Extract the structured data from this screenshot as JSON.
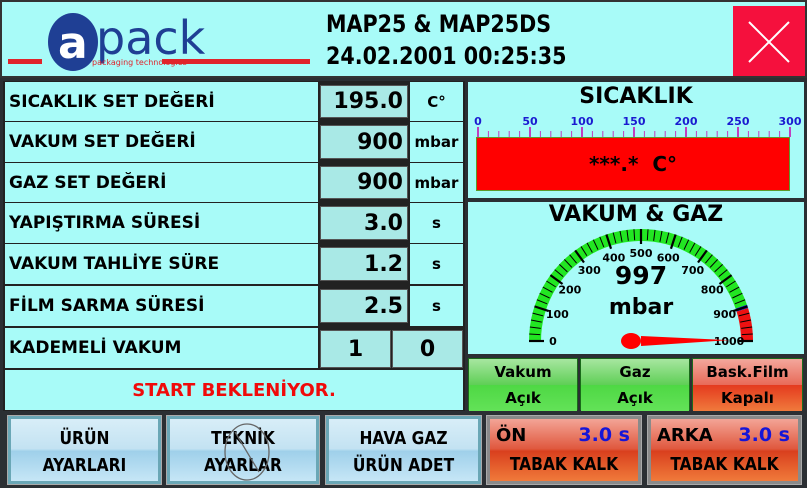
{
  "header": {
    "logo_text": "apack",
    "logo_subtext": "packaging technologies",
    "title": "MAP25 & MAP25DS",
    "datetime": "24.02.2001 00:25:35",
    "close_icon": "close-x-icon"
  },
  "settings": [
    {
      "label": "SICAKLIK SET DEĞERİ",
      "value": "195.0",
      "unit": "C°"
    },
    {
      "label": "VAKUM SET DEĞERİ",
      "value": "900",
      "unit": "mbar"
    },
    {
      "label": "GAZ SET DEĞERİ",
      "value": "900",
      "unit": "mbar"
    },
    {
      "label": "YAPIŞTIRMA SÜRESİ",
      "value": "3.0",
      "unit": "s"
    },
    {
      "label": "VAKUM TAHLİYE SÜRE",
      "value": "1.2",
      "unit": "s"
    },
    {
      "label": "FİLM SARMA SÜRESİ",
      "value": "2.5",
      "unit": "s"
    }
  ],
  "kademeli": {
    "label": "KADEMELİ VAKUM",
    "value1": "1",
    "value2": "0"
  },
  "status": "START BEKLENİYOR.",
  "temperature": {
    "title": "SICAKLIK",
    "ticks": [
      "0",
      "50",
      "100",
      "150",
      "200",
      "250",
      "300"
    ],
    "min": 0,
    "max": 300,
    "display": "***.*  C°",
    "bar_color": "#ff0000"
  },
  "vacuum": {
    "title": "VAKUM & GAZ",
    "value": 997,
    "value_text": "997",
    "unit": "mbar",
    "min": 0,
    "max": 1000,
    "ticks": [
      "0",
      "100",
      "200",
      "300",
      "400",
      "500",
      "600",
      "700",
      "800",
      "900",
      "1000"
    ],
    "green_until": 895,
    "blue_until": 905,
    "colors": {
      "green": "#22e622",
      "blue": "#1010c0",
      "red": "#ee1111"
    }
  },
  "state_buttons": [
    {
      "line1": "Vakum",
      "line2": "Açık",
      "state": "green"
    },
    {
      "line1": "Gaz",
      "line2": "Açık",
      "state": "green"
    },
    {
      "line1": "Bask.Film",
      "line2": "Kapalı",
      "state": "red"
    }
  ],
  "bottom_buttons": [
    {
      "line1": "ÜRÜN",
      "line2": "AYARLARI"
    },
    {
      "line1": "TEKNİK",
      "line2": "AYARLAR",
      "disabled_icon": "no-entry-icon"
    },
    {
      "line1": "HAVA GAZ",
      "line2": "ÜRÜN ADET"
    },
    {
      "line1": "ÖN",
      "time": "3.0 s",
      "line2": "TABAK KALK"
    },
    {
      "line1": "ARKA",
      "time": "3.0 s",
      "line2": "TABAK KALK"
    }
  ]
}
